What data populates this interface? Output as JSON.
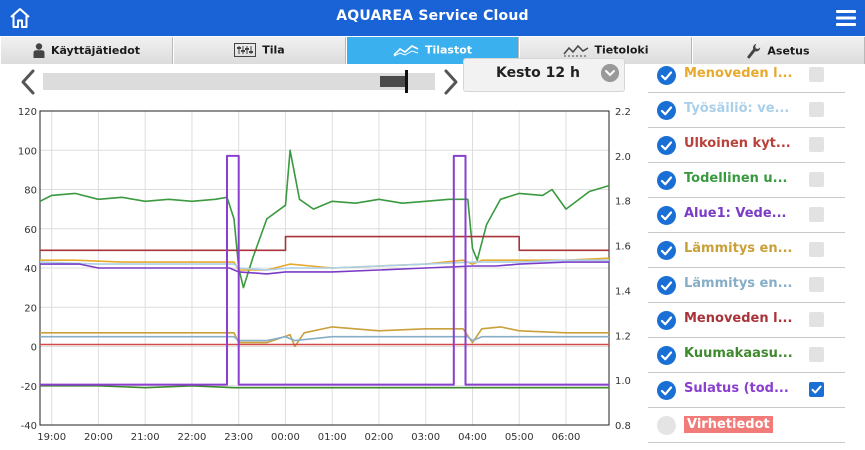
{
  "app": {
    "title": "AQUAREA Service Cloud"
  },
  "tabs": [
    {
      "label": "Käyttäjätiedot",
      "icon": "person-icon",
      "active": false
    },
    {
      "label": "Tila",
      "icon": "status-panel-icon",
      "active": false
    },
    {
      "label": "Tilastot",
      "icon": "statistics-icon",
      "active": true
    },
    {
      "label": "Tietoloki",
      "icon": "data-log-icon",
      "active": false
    },
    {
      "label": "Asetus",
      "icon": "wrench-icon",
      "active": false
    }
  ],
  "timeline": {
    "duration_label": "Kesto 12 h",
    "window_position": 0.94
  },
  "legend": [
    {
      "label": "Menoveden l...",
      "color": "#e8a92c",
      "checked": true,
      "in_right_axis": false
    },
    {
      "label": "Työsäiliö: ve...",
      "color": "#a9cfe9",
      "checked": true,
      "in_right_axis": false
    },
    {
      "label": "Ulkoinen kyt...",
      "color": "#b9413b",
      "checked": true,
      "in_right_axis": false
    },
    {
      "label": "Todellinen u...",
      "color": "#3a9a3f",
      "checked": true,
      "in_right_axis": false
    },
    {
      "label": "Alue1: Vede...",
      "color": "#7a3cc6",
      "checked": true,
      "in_right_axis": false
    },
    {
      "label": "Lämmitys en...",
      "color": "#c9a03a",
      "checked": true,
      "in_right_axis": false
    },
    {
      "label": "Lämmitys en...",
      "color": "#86aec8",
      "checked": true,
      "in_right_axis": false
    },
    {
      "label": "Menoveden l...",
      "color": "#a8343a",
      "checked": true,
      "in_right_axis": false
    },
    {
      "label": "Kuumakaasu...",
      "color": "#3f8a2e",
      "checked": true,
      "in_right_axis": false
    },
    {
      "label": "Sulatus (tod...",
      "color": "#8a3fcf",
      "checked": true,
      "in_right_axis": true
    },
    {
      "label": "Virhetiedot",
      "color": "#f17b78",
      "checked": false,
      "in_right_axis": false
    }
  ],
  "chart_data": {
    "type": "line",
    "x_tick_labels": [
      "19:00",
      "20:00",
      "21:00",
      "22:00",
      "23:00",
      "00:00",
      "01:00",
      "02:00",
      "03:00",
      "04:00",
      "05:00",
      "06:00"
    ],
    "x_range_hours": [
      18.75,
      30.92
    ],
    "y_left": {
      "ticks": [
        120,
        100,
        80,
        60,
        40,
        20,
        0,
        -20,
        -40
      ],
      "range": [
        -40,
        120
      ]
    },
    "y_right": {
      "ticks": [
        "2.2",
        "2.0",
        "1.8",
        "1.6",
        "1.4",
        "1.2",
        "1.0",
        "0.8"
      ],
      "range": [
        0.8,
        2.2
      ]
    },
    "grid": true,
    "series": [
      {
        "color": "#3a9a3f",
        "axis": "left",
        "x": [
          18.75,
          19.0,
          19.5,
          20.0,
          20.5,
          21.0,
          21.5,
          22.0,
          22.5,
          22.75,
          22.9,
          23.0,
          23.1,
          23.3,
          23.6,
          24.0,
          24.1,
          24.3,
          24.6,
          25.0,
          25.5,
          26.0,
          26.5,
          27.0,
          27.5,
          27.9,
          28.0,
          28.1,
          28.3,
          28.6,
          29.0,
          29.5,
          29.7,
          30.0,
          30.5,
          30.92
        ],
        "y": [
          74,
          77,
          78,
          75,
          76,
          74,
          75,
          74,
          75,
          76,
          65,
          40,
          30,
          45,
          65,
          72,
          100,
          75,
          70,
          74,
          73,
          75,
          73,
          74,
          75,
          75,
          50,
          44,
          62,
          75,
          78,
          77,
          80,
          70,
          79,
          82
        ]
      },
      {
        "color": "#a8343a",
        "axis": "left",
        "x": [
          18.75,
          24.0,
          24.0,
          29.0,
          29.0,
          30.92
        ],
        "y": [
          49,
          49,
          56,
          56,
          49,
          49
        ]
      },
      {
        "color": "#e8a92c",
        "axis": "left",
        "x": [
          18.75,
          19.5,
          20.5,
          21.5,
          22.5,
          22.9,
          23.0,
          23.6,
          24.1,
          25.0,
          26.0,
          27.0,
          27.8,
          28.0,
          28.2,
          29.0,
          30.0,
          30.92
        ],
        "y": [
          44,
          44,
          43,
          43,
          43,
          43,
          39,
          39,
          42,
          40,
          41,
          42,
          44,
          42,
          44,
          44,
          44,
          45
        ]
      },
      {
        "color": "#a9cfe9",
        "axis": "left",
        "x": [
          18.75,
          20.0,
          21.0,
          22.0,
          22.9,
          23.0,
          23.6,
          24.1,
          25.0,
          26.0,
          27.0,
          28.0,
          29.0,
          30.0,
          30.92
        ],
        "y": [
          43,
          42,
          42,
          42,
          42,
          40,
          39,
          40,
          40,
          41,
          42,
          43,
          43,
          44,
          44
        ]
      },
      {
        "color": "#7a3cc6",
        "axis": "left",
        "x": [
          18.75,
          19.6,
          20.0,
          21.5,
          22.8,
          23.0,
          23.6,
          24.0,
          25.0,
          26.0,
          27.0,
          28.0,
          28.5,
          29.0,
          30.0,
          30.92
        ],
        "y": [
          42,
          42,
          40,
          40,
          40,
          38,
          37,
          38,
          38,
          39,
          40,
          41,
          41,
          42,
          43,
          43
        ]
      },
      {
        "color": "#c9a03a",
        "axis": "left",
        "x": [
          18.75,
          19.5,
          20.5,
          21.5,
          22.5,
          22.9,
          23.0,
          23.6,
          24.1,
          24.2,
          24.4,
          25.0,
          26.0,
          27.0,
          27.8,
          28.0,
          28.2,
          28.6,
          29.0,
          30.0,
          30.92
        ],
        "y": [
          7,
          7,
          7,
          7,
          7,
          7,
          2,
          2,
          6,
          0,
          7,
          10,
          8,
          9,
          9,
          2,
          9,
          10,
          8,
          7,
          7
        ]
      },
      {
        "color": "#86aec8",
        "axis": "left",
        "x": [
          18.75,
          20.0,
          22.9,
          23.0,
          23.6,
          24.0,
          24.2,
          25.0,
          26.0,
          27.0,
          27.9,
          28.0,
          28.2,
          29.0,
          30.92
        ],
        "y": [
          5,
          5,
          5,
          3,
          3,
          5,
          3,
          5,
          5,
          5,
          5,
          3,
          5,
          5,
          5
        ]
      },
      {
        "color": "#d44a4a",
        "axis": "left",
        "x": [
          18.75,
          30.92
        ],
        "y": [
          1,
          1
        ]
      },
      {
        "color": "#3f8a2e",
        "axis": "left",
        "x": [
          18.75,
          20.0,
          21.0,
          22.0,
          22.9,
          23.0,
          24.0,
          26.0,
          28.0,
          30.0,
          30.92
        ],
        "y": [
          -20,
          -20,
          -21,
          -20,
          -21,
          -21,
          -21,
          -21,
          -21,
          -21,
          -21
        ]
      },
      {
        "color": "#8a3fcf",
        "axis": "right",
        "x": [
          18.75,
          22.75,
          22.75,
          23.0,
          23.0,
          27.6,
          27.6,
          27.85,
          27.85,
          30.92
        ],
        "y": [
          0.98,
          0.98,
          2.0,
          2.0,
          0.98,
          0.98,
          2.0,
          2.0,
          0.98,
          0.98
        ]
      }
    ]
  }
}
